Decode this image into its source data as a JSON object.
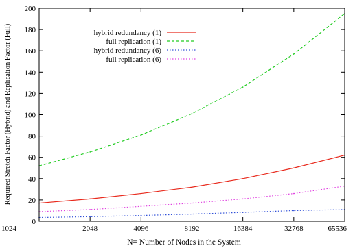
{
  "chart_data": {
    "type": "line",
    "title": "",
    "xlabel": "N= Number of Nodes in the System",
    "ylabel": "Required Stretch Factor (Hybrid) and Replication Factor (Full)",
    "x_scale": "log2",
    "x": [
      1024,
      2048,
      4096,
      8192,
      16384,
      32768,
      65536
    ],
    "xticks": [
      "1024",
      "2048",
      "4096",
      "8192",
      "16384",
      "32768",
      "65536"
    ],
    "ylim": [
      0,
      200
    ],
    "yticks": [
      "0",
      "20",
      "40",
      "60",
      "80",
      "100",
      "120",
      "140",
      "160",
      "180",
      "200"
    ],
    "grid": false,
    "legend_position": "top-left",
    "series": [
      {
        "name": "hybrid redundancy (1)",
        "color": "#e8291c",
        "dash": "solid",
        "values": [
          17,
          21,
          26,
          32,
          40,
          50,
          62
        ]
      },
      {
        "name": "full replication (1)",
        "color": "#22cc22",
        "dash": "dashed",
        "values": [
          52,
          65,
          81,
          101,
          126,
          157,
          195
        ]
      },
      {
        "name": "hybrid redundancy  (6)",
        "color": "#3050d8",
        "dash": "dotted",
        "values": [
          3.5,
          4.3,
          5.4,
          6.7,
          8.3,
          10,
          11
        ]
      },
      {
        "name": "full replication (6)",
        "color": "#e040e0",
        "dash": "dotted",
        "values": [
          9,
          11,
          14,
          17,
          21,
          26,
          33
        ]
      }
    ]
  }
}
